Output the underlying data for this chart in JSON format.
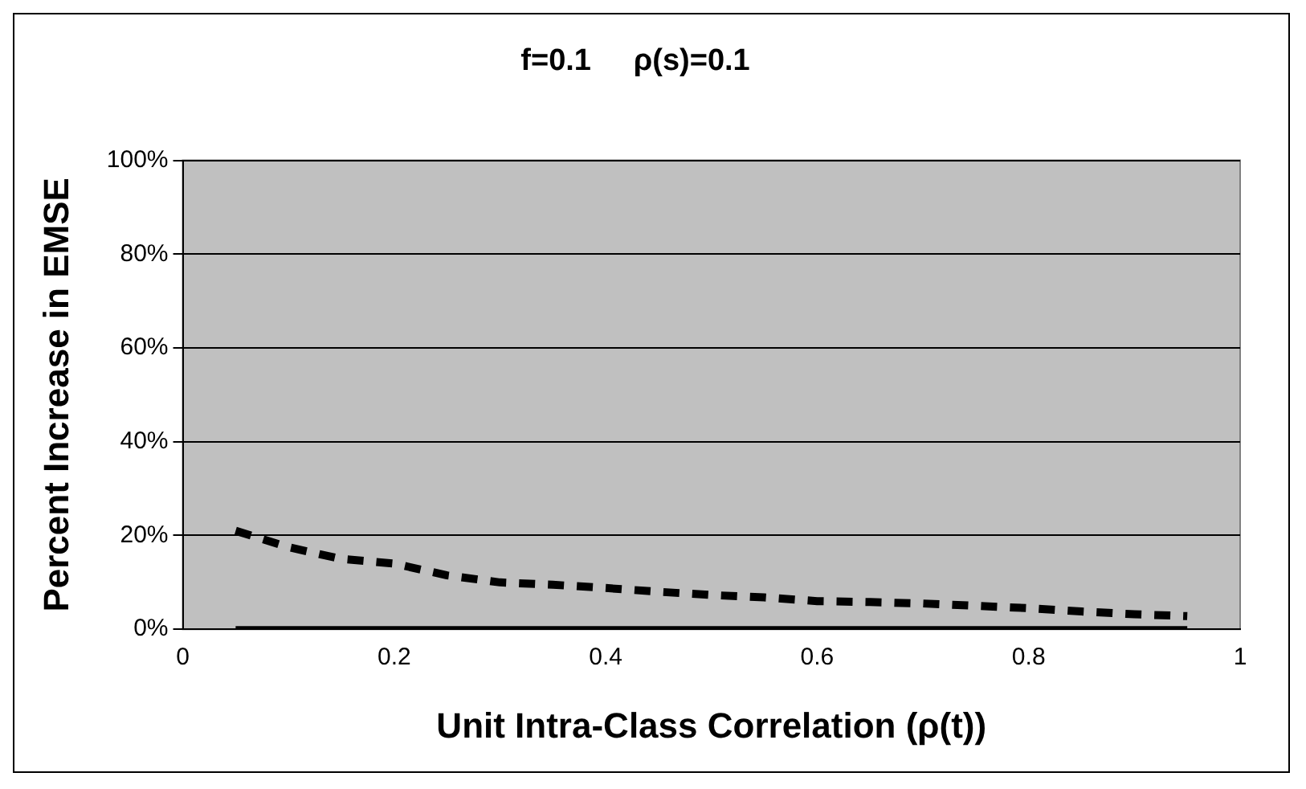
{
  "chart_data": {
    "type": "line",
    "title": "f=0.1     ρ(s)=0.1",
    "xlabel": "Unit Intra-Class Correlation (ρ(t))",
    "ylabel": "Percent Increase in EMSE",
    "x": [
      0.05,
      0.1,
      0.15,
      0.2,
      0.25,
      0.3,
      0.35,
      0.4,
      0.45,
      0.5,
      0.55,
      0.6,
      0.65,
      0.7,
      0.75,
      0.8,
      0.85,
      0.9,
      0.95
    ],
    "series": [
      {
        "color": "#000000",
        "line_style": "dashed",
        "values": [
          21,
          17.5,
          15,
          14,
          11.5,
          10,
          9.5,
          8.8,
          8,
          7.3,
          6.8,
          6,
          5.8,
          5.5,
          5,
          4.5,
          3.8,
          3.2,
          2.8
        ]
      },
      {
        "color": "#000000",
        "line_style": "solid",
        "values": [
          0,
          0,
          0,
          0,
          0,
          0,
          0,
          0,
          0,
          0,
          0,
          0,
          0,
          0,
          0,
          0,
          0,
          0,
          0
        ]
      }
    ],
    "xlim": [
      0,
      1
    ],
    "xticks": [
      0,
      0.2,
      0.4,
      0.6,
      0.8,
      1
    ],
    "ylim": [
      0,
      100
    ],
    "yticks": [
      {
        "value": 0,
        "label": "0%"
      },
      {
        "value": 20,
        "label": "20%"
      },
      {
        "value": 40,
        "label": "40%"
      },
      {
        "value": 60,
        "label": "60%"
      },
      {
        "value": 80,
        "label": "80%"
      },
      {
        "value": 100,
        "label": "100%"
      }
    ],
    "grid": "y",
    "legend": false,
    "marker": "none"
  }
}
